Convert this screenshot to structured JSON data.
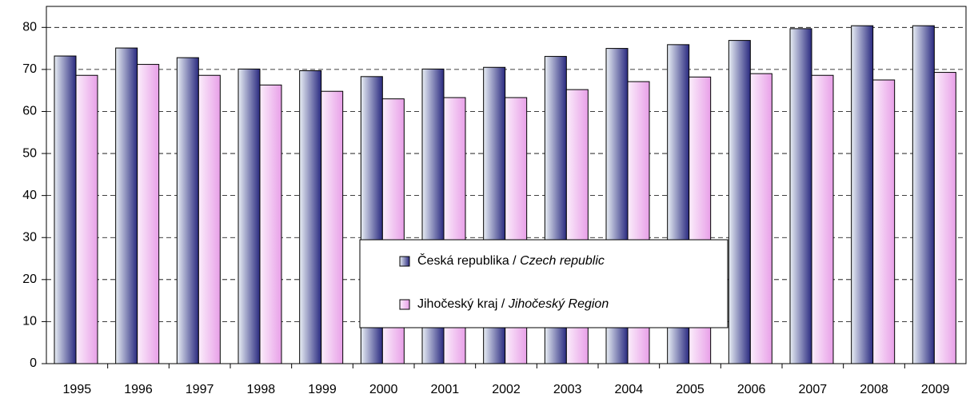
{
  "chart_data": {
    "type": "bar",
    "categories": [
      "1995",
      "1996",
      "1997",
      "1998",
      "1999",
      "2000",
      "2001",
      "2002",
      "2003",
      "2004",
      "2005",
      "2006",
      "2007",
      "2008",
      "2009"
    ],
    "series": [
      {
        "name": "Česká republika / Czech republic",
        "color": "#2a2a80",
        "values": [
          73.2,
          75.1,
          72.8,
          70.1,
          69.7,
          68.3,
          70.1,
          70.5,
          73.1,
          75.0,
          75.9,
          76.9,
          79.7,
          80.4,
          80.4
        ]
      },
      {
        "name": "Jihočeský kraj / Jihočeský Region",
        "color": "#e8a0e8",
        "values": [
          68.6,
          71.2,
          68.6,
          66.3,
          64.8,
          63.0,
          63.3,
          63.3,
          65.2,
          67.1,
          68.2,
          69.0,
          68.6,
          67.5,
          69.3
        ]
      }
    ],
    "ylim": [
      0,
      85
    ],
    "yticks": [
      0,
      10,
      20,
      30,
      40,
      50,
      60,
      70,
      80
    ],
    "grid": true,
    "legend_position": "center"
  }
}
